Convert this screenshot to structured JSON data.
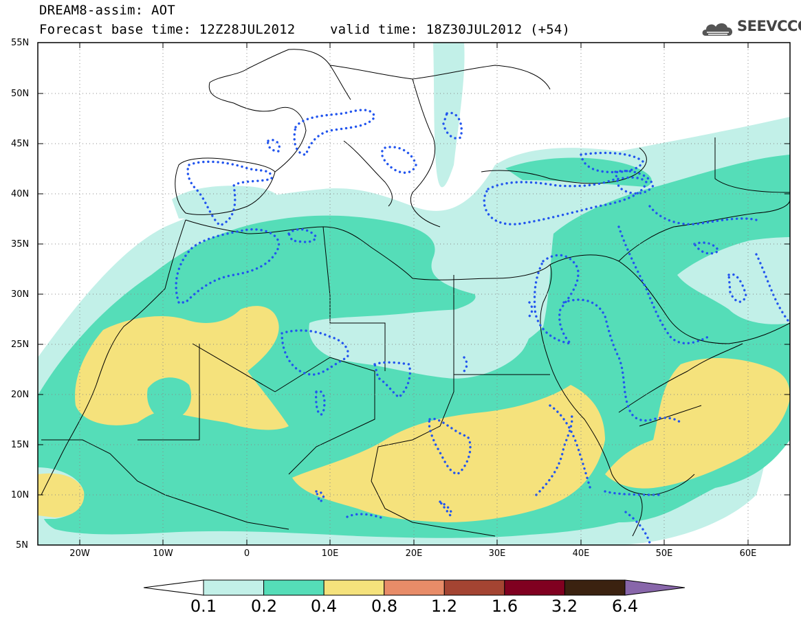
{
  "title": {
    "line1": "DREAM8-assim: AOT",
    "line2_base": "Forecast base time: 12Z28JUL2012",
    "line2_valid": "valid time: 18Z30JUL2012 (+54)"
  },
  "logo": {
    "text": "SEEVCCC",
    "icon": "cloud-icon"
  },
  "map": {
    "lat_ticks": [
      "55N",
      "50N",
      "45N",
      "40N",
      "35N",
      "30N",
      "25N",
      "20N",
      "15N",
      "10N",
      "5N"
    ],
    "lon_ticks": [
      "20W",
      "10W",
      "0",
      "10E",
      "20E",
      "30E",
      "40E",
      "50E",
      "60E"
    ],
    "lon_range": [
      -25,
      65
    ],
    "lat_range": [
      5,
      55
    ]
  },
  "colorbar": {
    "labels": [
      "0.1",
      "0.2",
      "0.4",
      "0.8",
      "1.2",
      "1.6",
      "3.2",
      "6.4"
    ],
    "colors": [
      "#ffffff",
      "#c2f0e8",
      "#55ddb8",
      "#f5e27c",
      "#e88c68",
      "#a44432",
      "#800020",
      "#3b2210",
      "#8866aa"
    ]
  },
  "legend_colors": {
    "c01": "#c2f0e8",
    "c02": "#55ddb8",
    "c04": "#f5e27c",
    "dust_contour": "#2255ee"
  }
}
